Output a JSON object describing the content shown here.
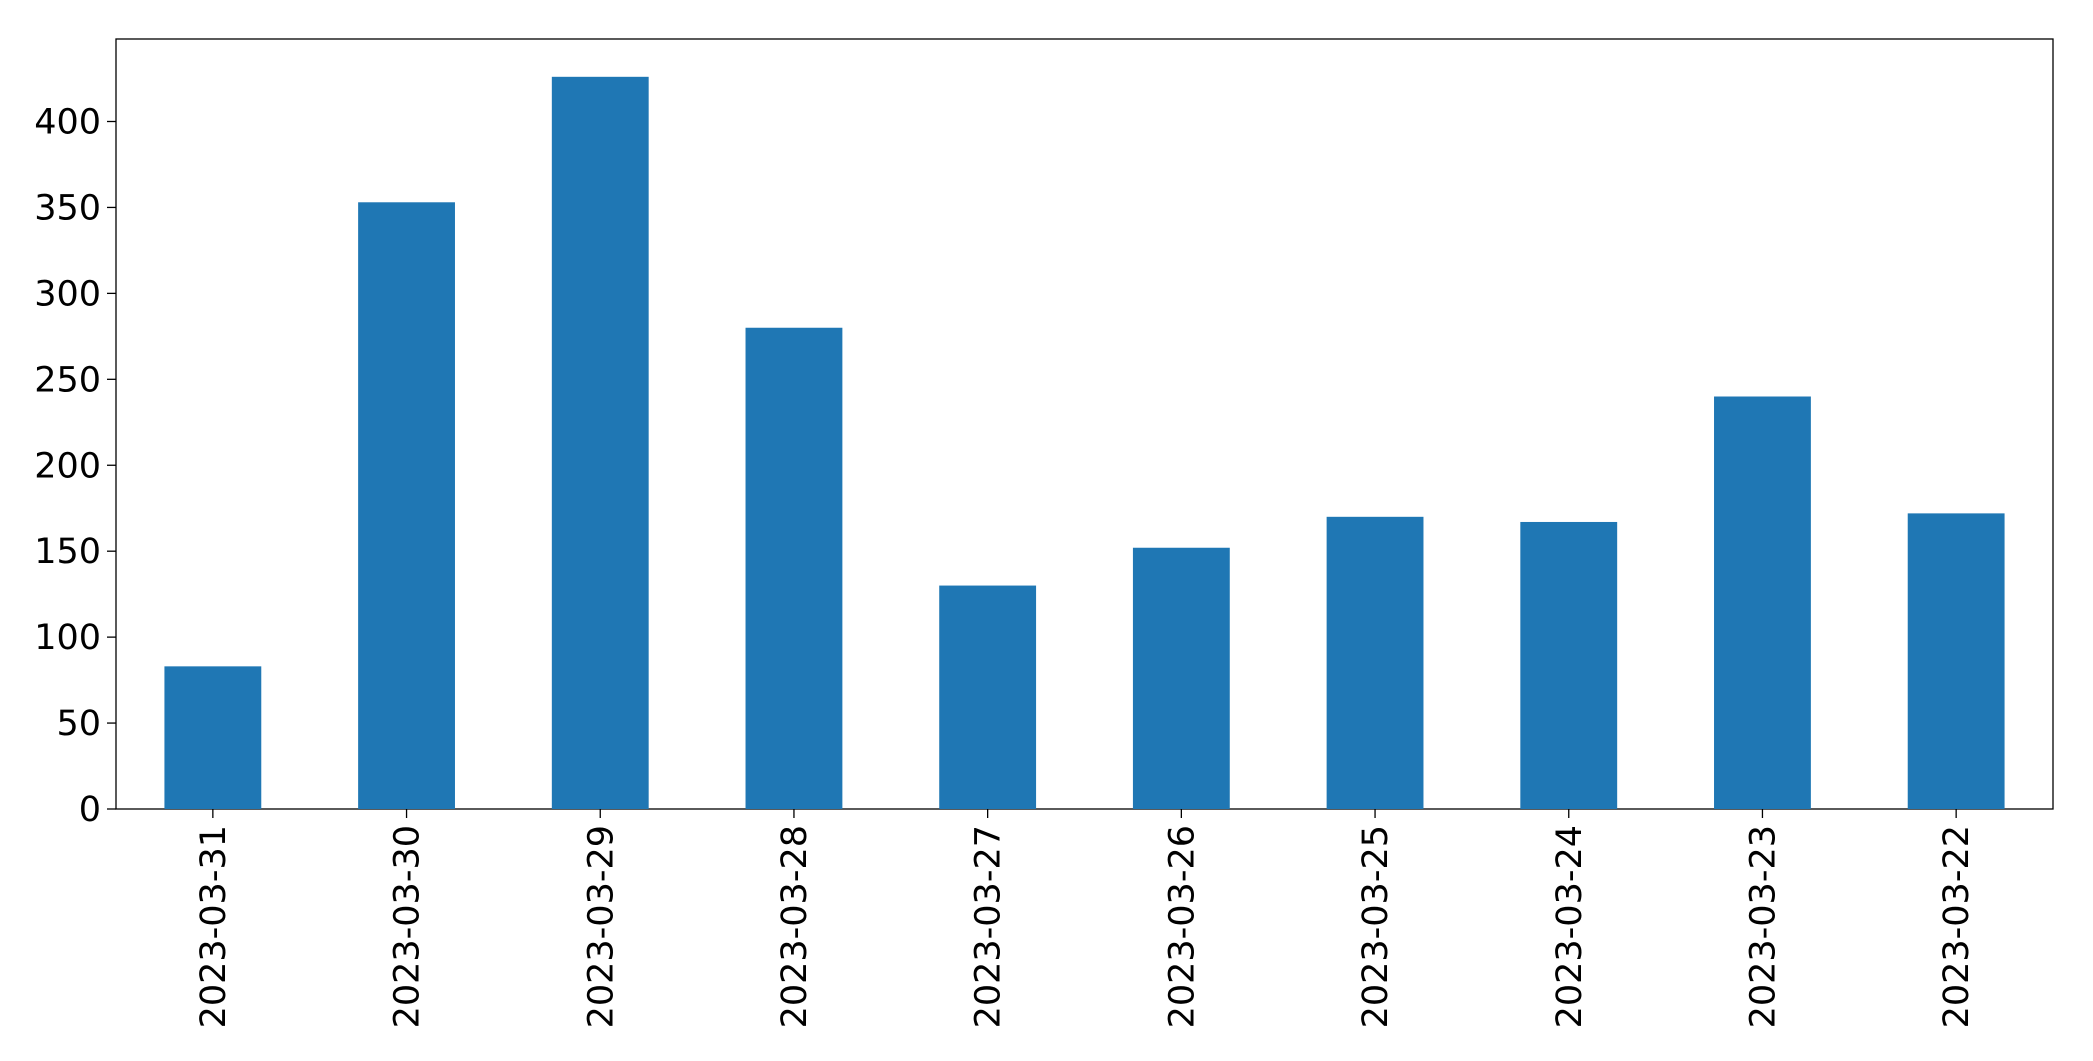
{
  "chart_data": {
    "type": "bar",
    "categories": [
      "2023-03-31",
      "2023-03-30",
      "2023-03-29",
      "2023-03-28",
      "2023-03-27",
      "2023-03-26",
      "2023-03-25",
      "2023-03-24",
      "2023-03-23",
      "2023-03-22"
    ],
    "values": [
      83,
      353,
      426,
      280,
      130,
      152,
      170,
      167,
      240,
      172
    ],
    "color": "#1f77b4",
    "ylim": [
      0,
      448
    ],
    "yticks": [
      0,
      50,
      100,
      150,
      200,
      250,
      300,
      350,
      400
    ],
    "grid": false
  }
}
